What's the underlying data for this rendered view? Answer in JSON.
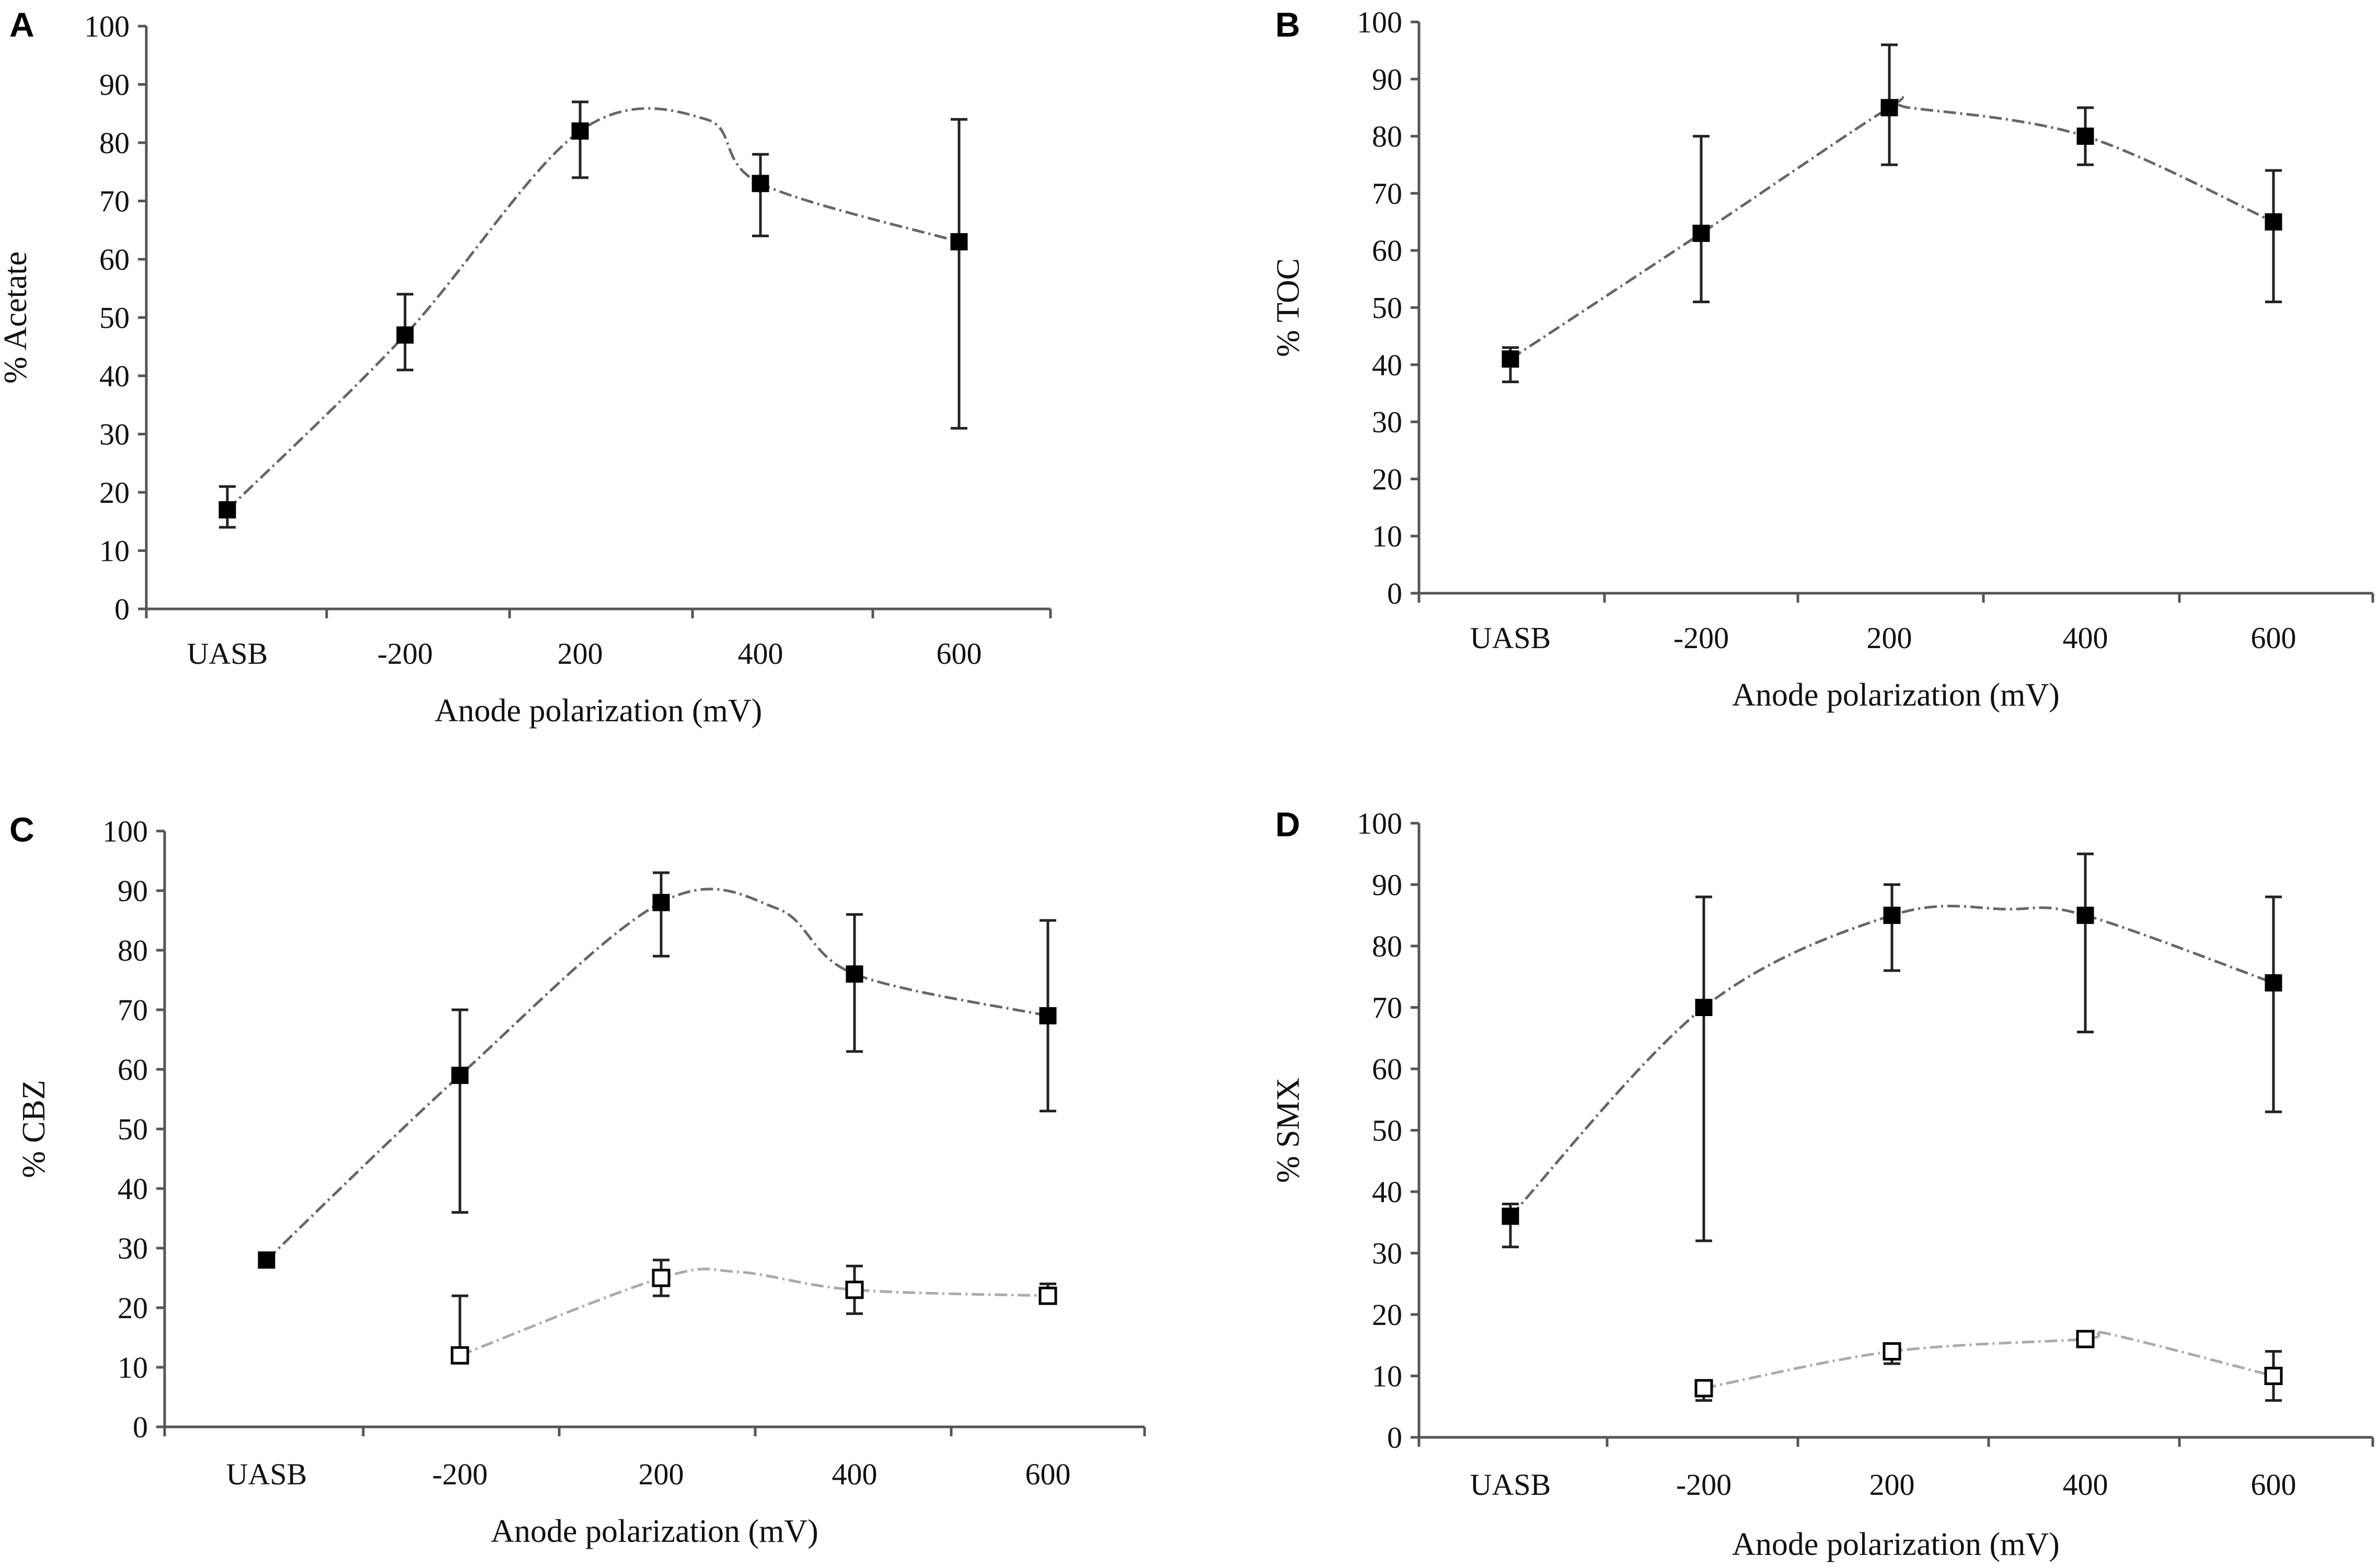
{
  "chart_data": [
    {
      "type": "line",
      "panel": "A",
      "categories": [
        "UASB",
        "-200",
        "200",
        "400",
        "600"
      ],
      "xlabel": "Anode polarization (mV)",
      "ylabel": "% Acetate",
      "ylim": [
        0,
        100
      ],
      "yticks": [
        "0",
        "10",
        "20",
        "30",
        "40",
        "50",
        "60",
        "70",
        "80",
        "90",
        "100"
      ],
      "grid": false,
      "series": [
        {
          "name": "filled",
          "marker": "filled-square",
          "values": [
            17,
            47,
            82,
            73,
            63
          ],
          "err_low": [
            14,
            41,
            74,
            64,
            31
          ],
          "err_high": [
            21,
            54,
            87,
            78,
            84
          ],
          "peak_x": 2.7,
          "peak_y": 84
        }
      ]
    },
    {
      "type": "line",
      "panel": "B",
      "categories": [
        "UASB",
        "-200",
        "200",
        "400",
        "600"
      ],
      "xlabel": "Anode polarization (mV)",
      "ylabel": "% TOC",
      "ylim": [
        0,
        100
      ],
      "yticks": [
        "0",
        "10",
        "20",
        "30",
        "40",
        "50",
        "60",
        "70",
        "80",
        "90",
        "100"
      ],
      "grid": false,
      "series": [
        {
          "name": "filled",
          "marker": "filled-square",
          "values": [
            41,
            63,
            85,
            80,
            65
          ],
          "err_low": [
            37,
            51,
            75,
            75,
            51
          ],
          "err_high": [
            43,
            80,
            96,
            85,
            74
          ],
          "peak_x": 2.1,
          "peak_y": 85
        }
      ]
    },
    {
      "type": "line",
      "panel": "C",
      "categories": [
        "UASB",
        "-200",
        "200",
        "400",
        "600"
      ],
      "xlabel": "Anode polarization (mV)",
      "ylabel": "% CBZ",
      "ylim": [
        0,
        100
      ],
      "yticks": [
        "0",
        "10",
        "20",
        "30",
        "40",
        "50",
        "60",
        "70",
        "80",
        "90",
        "100"
      ],
      "grid": false,
      "series": [
        {
          "name": "filled",
          "marker": "filled-square",
          "values": [
            28,
            59,
            88,
            76,
            69
          ],
          "err_low": [
            27,
            36,
            79,
            63,
            53
          ],
          "err_high": [
            29,
            70,
            93,
            86,
            85
          ],
          "peak_x": 2.6,
          "peak_y": 87
        },
        {
          "name": "open",
          "marker": "open-square",
          "values": [
            null,
            12,
            25,
            23,
            22
          ],
          "err_low": [
            null,
            12,
            22,
            19,
            21
          ],
          "err_high": [
            null,
            22,
            28,
            27,
            24
          ],
          "peak_x": 2.4,
          "peak_y": 26
        }
      ]
    },
    {
      "type": "line",
      "panel": "D",
      "categories": [
        "UASB",
        "-200",
        "200",
        "400",
        "600"
      ],
      "xlabel": "Anode polarization (mV)",
      "ylabel": "% SMX",
      "ylim": [
        0,
        100
      ],
      "yticks": [
        "0",
        "10",
        "20",
        "30",
        "40",
        "50",
        "60",
        "70",
        "80",
        "90",
        "100"
      ],
      "grid": false,
      "series": [
        {
          "name": "filled",
          "marker": "filled-square",
          "values": [
            36,
            70,
            85,
            85,
            74
          ],
          "err_low": [
            31,
            32,
            76,
            66,
            53
          ],
          "err_high": [
            38,
            88,
            90,
            95,
            88
          ],
          "peak_x": 2.6,
          "peak_y": 86
        },
        {
          "name": "open",
          "marker": "open-square",
          "values": [
            null,
            8,
            14,
            16,
            10
          ],
          "err_low": [
            null,
            6,
            12,
            15,
            6
          ],
          "err_high": [
            null,
            9,
            15,
            17,
            14
          ],
          "peak_x": 3.1,
          "peak_y": 17
        }
      ]
    }
  ]
}
